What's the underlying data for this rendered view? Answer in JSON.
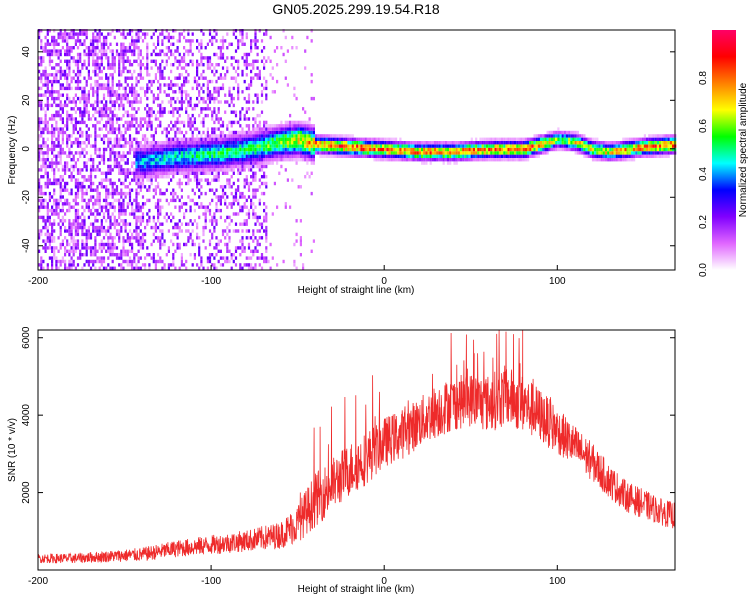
{
  "title": "GN05.2025.299.19.54.R18",
  "chart_data": [
    {
      "type": "heatmap",
      "xlabel": "Height of straight line (km)",
      "ylabel": "Frequency (Hz)",
      "xlim": [
        -200,
        168
      ],
      "ylim": [
        -50,
        49
      ],
      "x_ticks": [
        -200,
        -100,
        0,
        100
      ],
      "y_ticks": [
        -40,
        -20,
        0,
        20,
        40
      ],
      "colorbar": {
        "label": "Normalized spectral amplitude",
        "range": [
          0,
          1
        ],
        "ticks": [
          "0.0",
          "0.2",
          "0.4",
          "0.6",
          "0.8"
        ],
        "colors": [
          "#ffffff",
          "#e066ff",
          "#8000ff",
          "#0000ff",
          "#00ffff",
          "#00ff00",
          "#ffff00",
          "#ff8000",
          "#ff0000",
          "#ff0066"
        ]
      },
      "ridge": {
        "x": [
          -140,
          -120,
          -100,
          -80,
          -60,
          -50,
          -40,
          -20,
          0,
          20,
          40,
          60,
          80,
          90,
          100,
          110,
          120,
          130,
          140,
          150,
          168
        ],
        "frequency": [
          -6,
          -4,
          -3,
          -1,
          2,
          3,
          1,
          0,
          -1,
          -2,
          -2,
          -1,
          -1,
          1,
          3,
          2,
          -1,
          -2,
          -1,
          0,
          1
        ],
        "peak_amplitude": [
          0.45,
          0.5,
          0.55,
          0.55,
          0.65,
          0.75,
          0.85,
          0.9,
          0.85,
          0.85,
          0.85,
          0.85,
          0.9,
          0.85,
          0.6,
          0.75,
          0.7,
          0.75,
          0.8,
          0.85,
          0.9
        ]
      },
      "noise_region": {
        "x_range": [
          -200,
          -68
        ],
        "amplitude": 0.25
      }
    },
    {
      "type": "line",
      "xlabel": "Height of straight line (km)",
      "ylabel": "SNR (10 * v/v)",
      "xlim": [
        -200,
        168
      ],
      "ylim": [
        0,
        6200
      ],
      "x_ticks": [
        -200,
        -100,
        0,
        100
      ],
      "y_ticks": [
        2000,
        4000,
        6000
      ],
      "series": [
        {
          "color": "#ee2a2a",
          "x": [
            -200,
            -180,
            -160,
            -140,
            -120,
            -100,
            -80,
            -60,
            -50,
            -40,
            -30,
            -20,
            -10,
            0,
            10,
            20,
            30,
            40,
            50,
            60,
            70,
            80,
            90,
            100,
            110,
            120,
            130,
            140,
            150,
            160,
            168
          ],
          "y": [
            300,
            300,
            350,
            400,
            550,
            650,
            750,
            900,
            1200,
            1800,
            2200,
            2600,
            2900,
            3300,
            3500,
            3800,
            4100,
            4300,
            4400,
            4300,
            4500,
            4300,
            4000,
            3600,
            3200,
            2800,
            2300,
            1900,
            1700,
            1500,
            1400
          ],
          "spread": [
            120,
            130,
            150,
            180,
            220,
            250,
            280,
            350,
            500,
            700,
            700,
            700,
            700,
            650,
            650,
            650,
            700,
            700,
            700,
            750,
            800,
            750,
            700,
            600,
            550,
            500,
            450,
            400,
            380,
            350,
            350
          ],
          "spikes": [
            {
              "x": -37,
              "y": 3700
            },
            {
              "x": 65,
              "y": 6100
            },
            {
              "x": 80,
              "y": 6200
            },
            {
              "x": 52,
              "y": 5600
            }
          ]
        }
      ]
    }
  ]
}
